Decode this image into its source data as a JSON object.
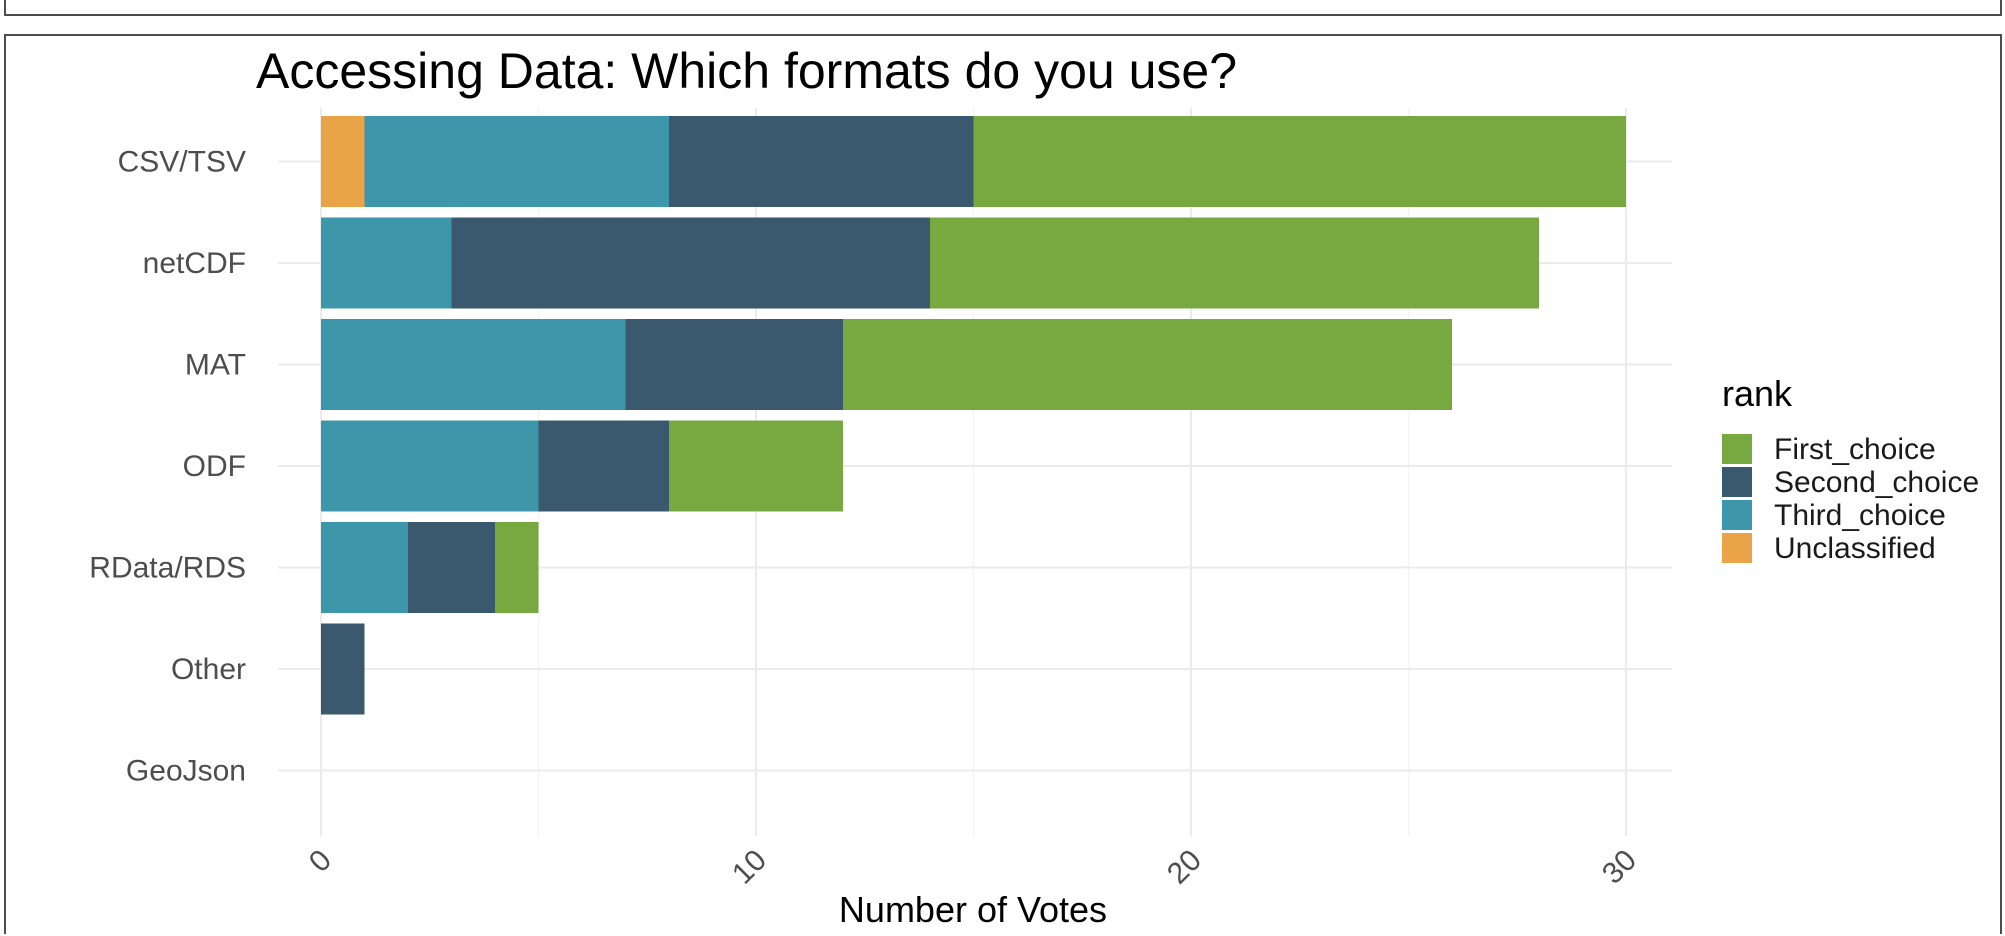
{
  "colors": {
    "First_choice": "#78a840",
    "Second_choice": "#3a586e",
    "Third_choice": "#3e96aa",
    "Unclassified": "#e8a447"
  },
  "chart_data": {
    "type": "bar",
    "orientation": "horizontal",
    "stacked": true,
    "title": "Accessing Data: Which formats do you use?",
    "xlabel": "Number of Votes",
    "ylabel": "",
    "xlim": [
      0,
      31
    ],
    "x_ticks": [
      0,
      10,
      20,
      30
    ],
    "x_tick_labels": [
      "0",
      "10",
      "20",
      "30"
    ],
    "grid": true,
    "legend_title": "rank",
    "legend_position": "right",
    "categories": [
      "CSV/TSV",
      "netCDF",
      "MAT",
      "ODF",
      "RData/RDS",
      "Other",
      "GeoJson"
    ],
    "stack_order": [
      "Unclassified",
      "Third_choice",
      "Second_choice",
      "First_choice"
    ],
    "series": [
      {
        "name": "First_choice",
        "values": [
          15,
          14,
          14,
          4,
          1,
          0,
          0
        ]
      },
      {
        "name": "Second_choice",
        "values": [
          7,
          11,
          5,
          3,
          2,
          1,
          0
        ]
      },
      {
        "name": "Third_choice",
        "values": [
          7,
          3,
          7,
          5,
          2,
          0,
          0
        ]
      },
      {
        "name": "Unclassified",
        "values": [
          1,
          0,
          0,
          0,
          0,
          0,
          0
        ]
      }
    ]
  }
}
